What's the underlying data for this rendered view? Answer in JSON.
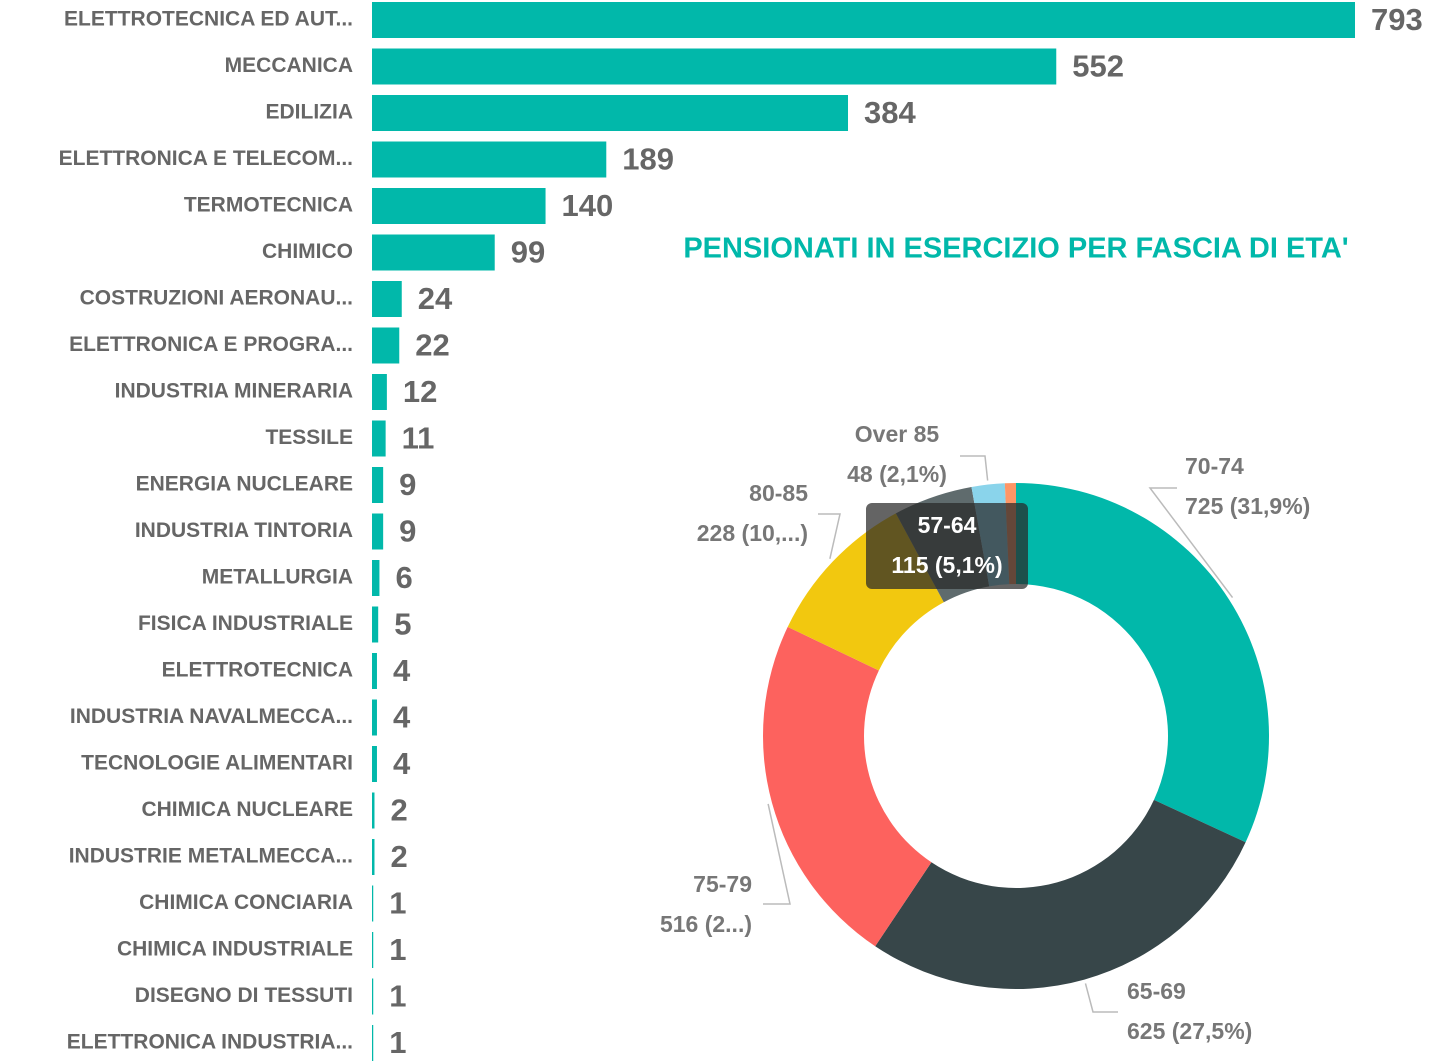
{
  "chart_data": [
    {
      "type": "hbar",
      "color": "#01b8aa",
      "categories": [
        "ELETTROTECNICA ED AUT...",
        "MECCANICA",
        "EDILIZIA",
        "ELETTRONICA E TELECOM...",
        "TERMOTECNICA",
        "CHIMICO",
        "COSTRUZIONI AERONAU...",
        "ELETTRONICA E PROGRA...",
        "INDUSTRIA MINERARIA",
        "TESSILE",
        "ENERGIA NUCLEARE",
        "INDUSTRIA TINTORIA",
        "METALLURGIA",
        "FISICA INDUSTRIALE",
        "ELETTROTECNICA",
        "INDUSTRIA NAVALMECCA...",
        "TECNOLOGIE ALIMENTARI",
        "CHIMICA NUCLEARE",
        "INDUSTRIE METALMECCA...",
        "CHIMICA CONCIARIA",
        "CHIMICA INDUSTRIALE",
        "DISEGNO DI TESSUTI",
        "ELETTRONICA INDUSTRIA..."
      ],
      "values": [
        793,
        552,
        384,
        189,
        140,
        99,
        24,
        22,
        12,
        11,
        9,
        9,
        6,
        5,
        4,
        4,
        4,
        2,
        2,
        1,
        1,
        1,
        1
      ]
    },
    {
      "type": "donut",
      "title": "PENSIONATI IN ESERCIZIO PER FASCIA DI ETA'",
      "categories": [
        "70-74",
        "65-69",
        "75-79",
        "80-85",
        "57-64",
        "Over 85",
        null
      ],
      "values": [
        725,
        625,
        516,
        228,
        115,
        48,
        16
      ],
      "value_labels": [
        "725 (31,9%)",
        "625 (27,5%)",
        "516 (2...)",
        "228 (10,...)",
        "115 (5,1%)",
        "48 (2,1%)",
        null
      ],
      "colors": [
        "#01b8aa",
        "#374649",
        "#fd625e",
        "#f2c80f",
        "#5f6b6d",
        "#8ad4eb",
        "#fe9666"
      ]
    }
  ]
}
